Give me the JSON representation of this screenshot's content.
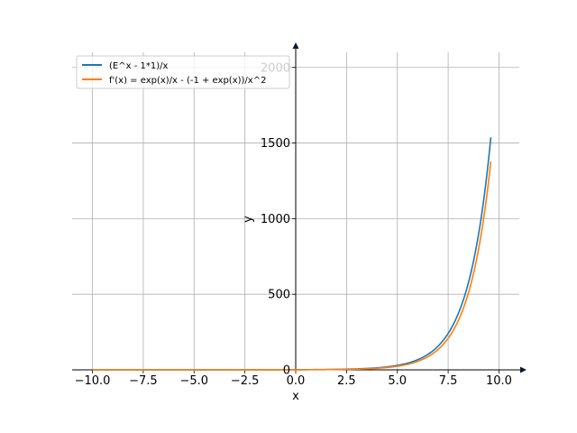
{
  "chart_data": {
    "type": "line",
    "xlabel": "x",
    "ylabel": "y",
    "xlim": [
      -11,
      11
    ],
    "ylim": [
      0,
      2100
    ],
    "grid": true,
    "legend_position": "top-left",
    "x_ticks": [
      -10,
      -7.5,
      -5,
      -2.5,
      0,
      2.5,
      5,
      7.5,
      10
    ],
    "x_tick_labels": [
      "−10.0",
      "−7.5",
      "−5.0",
      "−2.5",
      "0.0",
      "2.5",
      "5.0",
      "7.5",
      "10.0"
    ],
    "y_ticks": [
      0,
      500,
      1000,
      1500,
      2000
    ],
    "y_tick_labels": [
      "0",
      "500",
      "1000",
      "1500",
      "2000"
    ],
    "series": [
      {
        "name": "(E^x - 1*1)/x",
        "color": "#1f77b4",
        "function": "(exp(x) - 1)/x",
        "x_range": [
          -10,
          9.6
        ],
        "sample_points": [
          {
            "x": -10,
            "y": 0.1
          },
          {
            "x": 0,
            "y": 1
          },
          {
            "x": 2.5,
            "y": 4.5
          },
          {
            "x": 5,
            "y": 29.5
          },
          {
            "x": 7.5,
            "y": 241
          },
          {
            "x": 9.6,
            "y": 1530
          }
        ]
      },
      {
        "name": "f'(x) = exp(x)/x - (-1 + exp(x))/x^2",
        "color": "#ff7f0e",
        "function": "exp(x)/x - (exp(x) - 1)/x^2",
        "x_range": [
          -10,
          9.6
        ],
        "sample_points": [
          {
            "x": -10,
            "y": -0.01
          },
          {
            "x": 0,
            "y": 0.5
          },
          {
            "x": 2.5,
            "y": 3.1
          },
          {
            "x": 5,
            "y": 23.8
          },
          {
            "x": 7.5,
            "y": 209
          },
          {
            "x": 9.6,
            "y": 1370
          }
        ]
      }
    ]
  }
}
